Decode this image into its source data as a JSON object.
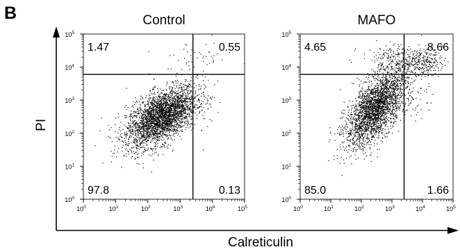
{
  "figure": {
    "panel_letter": "B",
    "shared_ylabel": "PI",
    "shared_xlabel": "Calreticulin"
  },
  "chart_data": [
    {
      "type": "scatter",
      "title": "Control",
      "xlabel": "Calreticulin",
      "ylabel": "PI",
      "x_scale": "log",
      "y_scale": "log",
      "xlim": [
        1,
        100000
      ],
      "ylim": [
        1,
        100000
      ],
      "x_tick_labels": [
        "10^0",
        "10^1",
        "10^2",
        "10^3",
        "10^4",
        "10^5"
      ],
      "y_tick_labels": [
        "10^0",
        "10^1",
        "10^2",
        "10^3",
        "10^4",
        "10^5"
      ],
      "gates": {
        "x": 2500,
        "y": 6000
      },
      "quadrants": {
        "upper_left": "1.47",
        "upper_right": "0.55",
        "lower_left": "97.8",
        "lower_right": "0.13"
      },
      "populations": [
        {
          "center_x": 260,
          "center_y": 320,
          "spread_x": 0.55,
          "spread_y": 0.38,
          "tilt": 0.45,
          "percent": 97.8
        },
        {
          "center_x": 3000,
          "center_y": 20000,
          "spread_x": 0.6,
          "spread_y": 0.25,
          "tilt": 0,
          "percent": 1.47
        },
        {
          "center_x": 6000,
          "center_y": 500,
          "spread_x": 0.3,
          "spread_y": 0.5,
          "tilt": 0,
          "percent": 0.13
        }
      ]
    },
    {
      "type": "scatter",
      "title": "MAFO",
      "xlabel": "Calreticulin",
      "ylabel": "PI",
      "x_scale": "log",
      "y_scale": "log",
      "xlim": [
        1,
        100000
      ],
      "ylim": [
        1,
        100000
      ],
      "x_tick_labels": [
        "10^0",
        "10^1",
        "10^2",
        "10^3",
        "10^4",
        "10^5"
      ],
      "y_tick_labels": [
        "10^0",
        "10^1",
        "10^2",
        "10^3",
        "10^4",
        "10^5"
      ],
      "gates": {
        "x": 2500,
        "y": 6000
      },
      "quadrants": {
        "upper_left": "4.65",
        "upper_right": "8.66",
        "lower_left": "85.0",
        "lower_right": "1.66"
      },
      "populations": [
        {
          "center_x": 300,
          "center_y": 600,
          "spread_x": 0.5,
          "spread_y": 0.45,
          "tilt": 0.75,
          "percent": 85.0
        },
        {
          "center_x": 1000,
          "center_y": 20000,
          "spread_x": 0.5,
          "spread_y": 0.2,
          "tilt": 0,
          "percent": 4.65
        },
        {
          "center_x": 9000,
          "center_y": 15000,
          "spread_x": 0.35,
          "spread_y": 0.2,
          "tilt": 0,
          "percent": 8.66
        },
        {
          "center_x": 6000,
          "center_y": 1500,
          "spread_x": 0.3,
          "spread_y": 0.4,
          "tilt": 0,
          "percent": 1.66
        }
      ]
    }
  ]
}
